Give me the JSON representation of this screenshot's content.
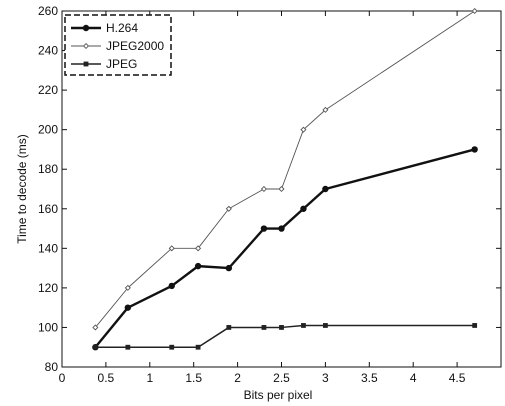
{
  "chart_data": {
    "type": "line",
    "title": "",
    "xlabel": "Bits per pixel",
    "ylabel": "Time to decode (ms)",
    "xlim": [
      0,
      5
    ],
    "ylim": [
      80,
      260
    ],
    "xticks": [
      0,
      0.5,
      1,
      1.5,
      2,
      2.5,
      3,
      3.5,
      4,
      4.5
    ],
    "xtick_labels": [
      "0",
      "0.5",
      "1",
      "1.5",
      "2",
      "2.5",
      "3",
      "3.5",
      "4",
      "4.5"
    ],
    "yticks": [
      80,
      100,
      120,
      140,
      160,
      180,
      200,
      220,
      240,
      260
    ],
    "ytick_labels": [
      "80",
      "100",
      "120",
      "140",
      "160",
      "180",
      "200",
      "220",
      "240",
      "260"
    ],
    "grid": false,
    "legend_position": "top-left",
    "series": [
      {
        "name": "H.264",
        "color": "#111111",
        "marker": "filled-circle",
        "line_width": "thick",
        "points": [
          [
            0.38,
            90
          ],
          [
            0.75,
            110
          ],
          [
            1.25,
            121
          ],
          [
            1.55,
            131
          ],
          [
            1.9,
            130
          ],
          [
            2.3,
            150
          ],
          [
            2.5,
            150
          ],
          [
            2.75,
            160
          ],
          [
            3.0,
            170
          ],
          [
            4.7,
            190
          ]
        ]
      },
      {
        "name": "JPEG2000",
        "color": "#555555",
        "marker": "small-diamond",
        "line_width": "thin",
        "points": [
          [
            0.38,
            100
          ],
          [
            0.75,
            120
          ],
          [
            1.25,
            140
          ],
          [
            1.55,
            140
          ],
          [
            1.9,
            160
          ],
          [
            2.3,
            170
          ],
          [
            2.5,
            170
          ],
          [
            2.75,
            200
          ],
          [
            3.0,
            210
          ],
          [
            4.7,
            260
          ]
        ]
      },
      {
        "name": "JPEG",
        "color": "#222222",
        "marker": "small-square",
        "line_width": "medium",
        "points": [
          [
            0.38,
            90
          ],
          [
            0.75,
            90
          ],
          [
            1.25,
            90
          ],
          [
            1.55,
            90
          ],
          [
            1.9,
            100
          ],
          [
            2.3,
            100
          ],
          [
            2.5,
            100
          ],
          [
            2.75,
            101
          ],
          [
            3.0,
            101
          ],
          [
            4.7,
            101
          ]
        ]
      }
    ]
  }
}
